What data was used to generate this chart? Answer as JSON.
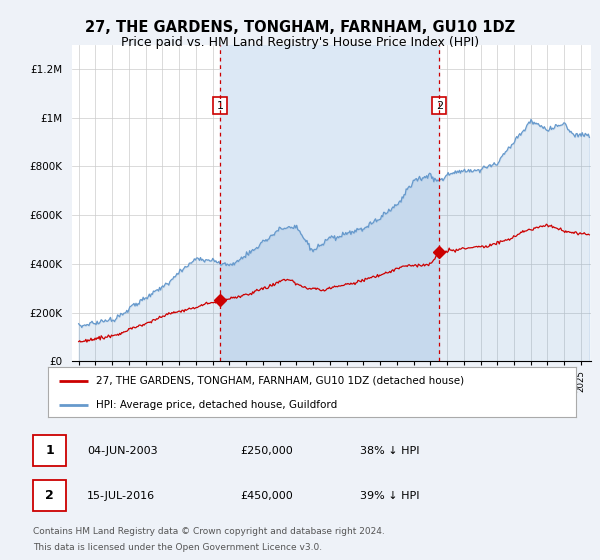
{
  "title": "27, THE GARDENS, TONGHAM, FARNHAM, GU10 1DZ",
  "subtitle": "Price paid vs. HM Land Registry's House Price Index (HPI)",
  "legend_label_red": "27, THE GARDENS, TONGHAM, FARNHAM, GU10 1DZ (detached house)",
  "legend_label_blue": "HPI: Average price, detached house, Guildford",
  "annotation1_date": "04-JUN-2003",
  "annotation1_price": "£250,000",
  "annotation1_pct": "38% ↓ HPI",
  "annotation1_year": 2003.43,
  "annotation1_value": 250000,
  "annotation2_date": "15-JUL-2016",
  "annotation2_price": "£450,000",
  "annotation2_pct": "39% ↓ HPI",
  "annotation2_year": 2016.54,
  "annotation2_value": 450000,
  "footer1": "Contains HM Land Registry data © Crown copyright and database right 2024.",
  "footer2": "This data is licensed under the Open Government Licence v3.0.",
  "ylim": [
    0,
    1300000
  ],
  "yticks": [
    0,
    200000,
    400000,
    600000,
    800000,
    1000000,
    1200000
  ],
  "ytick_labels": [
    "£0",
    "£200K",
    "£400K",
    "£600K",
    "£800K",
    "£1M",
    "£1.2M"
  ],
  "bg_color": "#eef2f8",
  "plot_bg_color": "#ffffff",
  "red_color": "#cc0000",
  "blue_color": "#6699cc",
  "shade_color": "#dce8f5",
  "dashed_color": "#cc0000",
  "title_fontsize": 10.5,
  "subtitle_fontsize": 9,
  "xstart": 1995,
  "xend": 2025
}
